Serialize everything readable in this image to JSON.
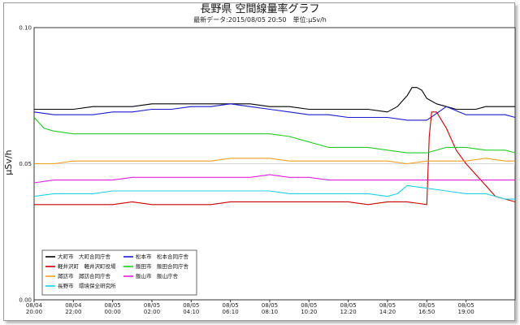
{
  "chart_data": {
    "type": "line",
    "title": "長野県 空間線量率グラフ",
    "subtitle": "最新データ:2015/08/05 20:50　単位:μSv/h",
    "ylabel": "μSv/h",
    "ylim": [
      0.0,
      0.1
    ],
    "yticks": [
      "0.00",
      "0.05",
      "0.10"
    ],
    "ytick_values": [
      0.0,
      0.05,
      0.1
    ],
    "grid": "horizontal",
    "legend_position": "bottom-left",
    "x_range": [
      0,
      98
    ],
    "xticks": [
      {
        "x": 0,
        "label1": "08/04",
        "label2": "20:00"
      },
      {
        "x": 8,
        "label1": "08/04",
        "label2": "22:00"
      },
      {
        "x": 16,
        "label1": "08/05",
        "label2": "00:00"
      },
      {
        "x": 24,
        "label1": "08/05",
        "label2": "02:00"
      },
      {
        "x": 32,
        "label1": "08/05",
        "label2": "04:10"
      },
      {
        "x": 40,
        "label1": "08/05",
        "label2": "06:10"
      },
      {
        "x": 48,
        "label1": "08/05",
        "label2": "08:10"
      },
      {
        "x": 56,
        "label1": "08/05",
        "label2": "10:20"
      },
      {
        "x": 64,
        "label1": "08/05",
        "label2": "12:20"
      },
      {
        "x": 72,
        "label1": "08/05",
        "label2": "14:20"
      },
      {
        "x": 80,
        "label1": "08/05",
        "label2": "16:50"
      },
      {
        "x": 88,
        "label1": "08/05",
        "label2": "19:00"
      }
    ],
    "series": [
      {
        "name": "大町市　大町合同庁舎",
        "color": "#000000",
        "x": [
          0,
          4,
          8,
          12,
          16,
          20,
          24,
          28,
          32,
          36,
          40,
          44,
          48,
          52,
          56,
          60,
          64,
          68,
          72,
          74,
          76,
          77,
          78,
          79,
          80,
          82,
          84,
          86,
          88,
          90,
          92,
          94,
          96,
          98
        ],
        "values": [
          0.07,
          0.07,
          0.07,
          0.071,
          0.071,
          0.071,
          0.072,
          0.072,
          0.072,
          0.072,
          0.072,
          0.072,
          0.071,
          0.071,
          0.07,
          0.07,
          0.07,
          0.07,
          0.069,
          0.071,
          0.075,
          0.078,
          0.078,
          0.077,
          0.074,
          0.072,
          0.071,
          0.07,
          0.07,
          0.07,
          0.071,
          0.071,
          0.071,
          0.071
        ]
      },
      {
        "name": "松本市　松本合同庁舎",
        "color": "#1a1ad0",
        "x": [
          0,
          4,
          8,
          12,
          16,
          20,
          24,
          28,
          32,
          36,
          40,
          44,
          48,
          52,
          56,
          60,
          64,
          68,
          72,
          76,
          80,
          84,
          88,
          92,
          96,
          98
        ],
        "values": [
          0.069,
          0.068,
          0.068,
          0.068,
          0.069,
          0.069,
          0.07,
          0.07,
          0.071,
          0.071,
          0.072,
          0.071,
          0.07,
          0.069,
          0.068,
          0.068,
          0.067,
          0.067,
          0.067,
          0.066,
          0.066,
          0.071,
          0.068,
          0.068,
          0.068,
          0.067
        ]
      },
      {
        "name": "軽井沢町　軽井沢町役場",
        "color": "#cc0000",
        "x": [
          0,
          4,
          8,
          12,
          16,
          20,
          24,
          28,
          32,
          36,
          40,
          44,
          48,
          52,
          56,
          60,
          64,
          68,
          72,
          76,
          80,
          80.5,
          81,
          82,
          84,
          86,
          88,
          90,
          92,
          94,
          96,
          98
        ],
        "values": [
          0.035,
          0.035,
          0.035,
          0.035,
          0.035,
          0.036,
          0.035,
          0.035,
          0.035,
          0.035,
          0.036,
          0.036,
          0.036,
          0.036,
          0.036,
          0.036,
          0.036,
          0.035,
          0.036,
          0.036,
          0.035,
          0.06,
          0.069,
          0.069,
          0.063,
          0.055,
          0.05,
          0.046,
          0.042,
          0.038,
          0.037,
          0.036
        ]
      },
      {
        "name": "飯田市　飯田合同庁舎",
        "color": "#22cc22",
        "x": [
          0,
          2,
          4,
          8,
          12,
          16,
          20,
          24,
          28,
          32,
          36,
          40,
          44,
          48,
          52,
          56,
          60,
          64,
          68,
          72,
          76,
          80,
          84,
          88,
          92,
          96,
          98
        ],
        "values": [
          0.067,
          0.063,
          0.062,
          0.061,
          0.061,
          0.061,
          0.061,
          0.061,
          0.061,
          0.061,
          0.061,
          0.061,
          0.061,
          0.061,
          0.06,
          0.058,
          0.056,
          0.056,
          0.056,
          0.055,
          0.054,
          0.054,
          0.056,
          0.056,
          0.055,
          0.055,
          0.054
        ]
      },
      {
        "name": "諏訪市　諏訪合同庁舎",
        "color": "#f0a020",
        "x": [
          0,
          4,
          8,
          12,
          16,
          20,
          24,
          28,
          32,
          36,
          40,
          44,
          48,
          52,
          56,
          60,
          64,
          68,
          72,
          76,
          80,
          84,
          88,
          92,
          96,
          98
        ],
        "values": [
          0.05,
          0.05,
          0.051,
          0.051,
          0.051,
          0.051,
          0.051,
          0.051,
          0.051,
          0.051,
          0.052,
          0.052,
          0.052,
          0.051,
          0.051,
          0.051,
          0.051,
          0.051,
          0.051,
          0.05,
          0.051,
          0.051,
          0.051,
          0.052,
          0.051,
          0.051
        ]
      },
      {
        "name": "飯山市　飯山庁舎",
        "color": "#e020e0",
        "x": [
          0,
          4,
          8,
          12,
          16,
          20,
          24,
          28,
          32,
          36,
          40,
          44,
          48,
          52,
          56,
          60,
          64,
          68,
          72,
          76,
          80,
          84,
          88,
          92,
          96,
          98
        ],
        "values": [
          0.043,
          0.044,
          0.044,
          0.044,
          0.044,
          0.045,
          0.045,
          0.045,
          0.045,
          0.045,
          0.045,
          0.045,
          0.046,
          0.045,
          0.045,
          0.044,
          0.044,
          0.044,
          0.044,
          0.044,
          0.044,
          0.044,
          0.044,
          0.044,
          0.044,
          0.044
        ]
      },
      {
        "name": "長野市　環境保全研究所",
        "color": "#20d0e0",
        "x": [
          0,
          4,
          8,
          12,
          16,
          20,
          24,
          28,
          32,
          36,
          40,
          44,
          48,
          52,
          56,
          60,
          64,
          68,
          72,
          74,
          76,
          80,
          84,
          88,
          92,
          96,
          98
        ],
        "values": [
          0.038,
          0.039,
          0.039,
          0.039,
          0.04,
          0.04,
          0.04,
          0.04,
          0.04,
          0.04,
          0.04,
          0.04,
          0.04,
          0.039,
          0.039,
          0.039,
          0.039,
          0.039,
          0.038,
          0.039,
          0.042,
          0.041,
          0.04,
          0.039,
          0.039,
          0.037,
          0.037
        ]
      }
    ]
  }
}
